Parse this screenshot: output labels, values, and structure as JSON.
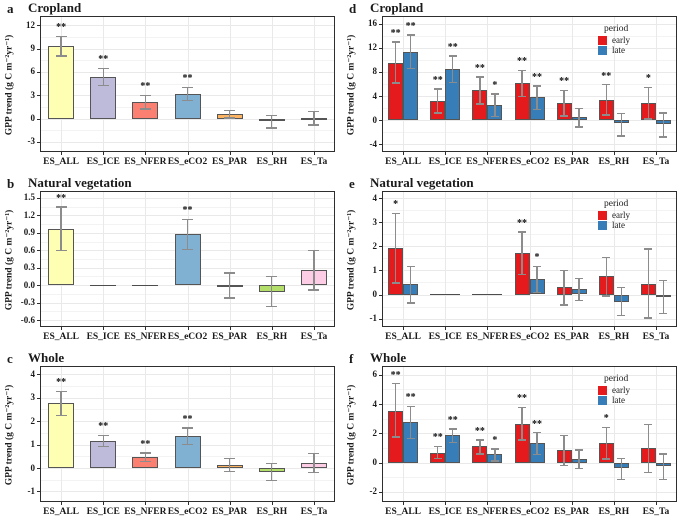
{
  "figure": {
    "ylabel": "GPP trend (g C m⁻²yr⁻¹)",
    "legend_title": "period",
    "legend_entries": [
      {
        "label": "early",
        "color": "#E41A1C"
      },
      {
        "label": "late",
        "color": "#377EB8"
      }
    ],
    "palette": {
      "ES_ALL": "#FFFFB3",
      "ES_ICE": "#BEBADA",
      "ES_NFER": "#FB8072",
      "ES_eCO2": "#80B1D3",
      "ES_PAR": "#FDB462",
      "ES_RH": "#B3DE69",
      "ES_Ta": "#FCCDE5"
    }
  },
  "chart_data": [
    {
      "type": "bar",
      "letter": "a",
      "title": "Cropland",
      "legend": false,
      "ylabel": "GPP trend (g C m⁻²yr⁻¹)",
      "categories": [
        "ES_ALL",
        "ES_ICE",
        "ES_NFER",
        "ES_eCO2",
        "ES_PAR",
        "ES_RH",
        "ES_Ta"
      ],
      "ylim": [
        -4.3,
        13.2
      ],
      "yticks": [
        "12",
        "9",
        "6",
        "3",
        "0",
        "-3"
      ],
      "series": [
        {
          "name": "trend",
          "colors": [
            "#FFFFB3",
            "#BEBADA",
            "#FB8072",
            "#80B1D3",
            "#FDB462",
            "#B3DE69",
            "#FCCDE5"
          ],
          "values": [
            9.3,
            5.4,
            2.15,
            3.2,
            0.55,
            -0.35,
            0.05
          ],
          "err_low": [
            8.1,
            4.3,
            1.25,
            2.35,
            0.1,
            -1.2,
            -0.8
          ],
          "err_high": [
            10.6,
            6.45,
            3.0,
            4.05,
            1.1,
            0.45,
            0.9
          ],
          "sig": [
            "**",
            "**",
            "**",
            "**",
            "",
            "",
            ""
          ]
        }
      ]
    },
    {
      "type": "bar",
      "letter": "b",
      "title": "Natural vegetation",
      "legend": false,
      "ylabel": "GPP trend (g C m⁻²yr⁻¹)",
      "categories": [
        "ES_ALL",
        "ES_ICE",
        "ES_NFER",
        "ES_eCO2",
        "ES_PAR",
        "ES_RH",
        "ES_Ta"
      ],
      "ylim": [
        -0.72,
        1.62
      ],
      "yticks": [
        "1.5",
        "1.2",
        "0.9",
        "0.6",
        "0.3",
        "0.0",
        "-0.3",
        "-0.6"
      ],
      "series": [
        {
          "name": "trend",
          "colors": [
            "#FFFFB3",
            "#BEBADA",
            "#FB8072",
            "#80B1D3",
            "#FDB462",
            "#B3DE69",
            "#FCCDE5"
          ],
          "values": [
            0.97,
            0,
            0,
            0.88,
            -0.01,
            -0.12,
            0.26
          ],
          "err_low": [
            0.6,
            null,
            null,
            0.62,
            -0.22,
            -0.36,
            -0.08
          ],
          "err_high": [
            1.35,
            null,
            null,
            1.13,
            0.21,
            0.15,
            0.6
          ],
          "sig": [
            "**",
            "",
            "",
            "**",
            "",
            "",
            ""
          ]
        }
      ]
    },
    {
      "type": "bar",
      "letter": "c",
      "title": "Whole",
      "legend": false,
      "ylabel": "GPP trend (g C m⁻²yr⁻¹)",
      "categories": [
        "ES_ALL",
        "ES_ICE",
        "ES_NFER",
        "ES_eCO2",
        "ES_PAR",
        "ES_RH",
        "ES_Ta"
      ],
      "ylim": [
        -1.45,
        4.35
      ],
      "yticks": [
        "4",
        "3",
        "2",
        "1",
        "0",
        "-1"
      ],
      "series": [
        {
          "name": "trend",
          "colors": [
            "#FFFFB3",
            "#BEBADA",
            "#FB8072",
            "#80B1D3",
            "#FDB462",
            "#B3DE69",
            "#FCCDE5"
          ],
          "values": [
            2.78,
            1.15,
            0.46,
            1.37,
            0.12,
            -0.15,
            0.22
          ],
          "err_low": [
            2.25,
            0.92,
            0.28,
            1.02,
            -0.15,
            -0.52,
            -0.18
          ],
          "err_high": [
            3.28,
            1.4,
            0.64,
            1.72,
            0.42,
            0.2,
            0.62
          ],
          "sig": [
            "**",
            "**",
            "**",
            "**",
            "",
            "",
            ""
          ]
        }
      ]
    },
    {
      "type": "bar",
      "letter": "d",
      "title": "Cropland",
      "legend": true,
      "ylabel": "GPP trend (g C m⁻²yr⁻¹)",
      "categories": [
        "ES_ALL",
        "ES_ICE",
        "ES_NFER",
        "ES_eCO2",
        "ES_PAR",
        "ES_RH",
        "ES_Ta"
      ],
      "ylim": [
        -5.3,
        17.3
      ],
      "yticks": [
        "16",
        "12",
        "8",
        "4",
        "0",
        "-4"
      ],
      "series": [
        {
          "name": "early",
          "color": "#E41A1C",
          "values": [
            9.5,
            3.2,
            5.0,
            6.2,
            2.9,
            3.4,
            2.9
          ],
          "err_low": [
            6.2,
            1.2,
            2.7,
            4.0,
            0.7,
            0.9,
            0.2
          ],
          "err_high": [
            13.0,
            5.2,
            7.2,
            8.3,
            5.0,
            5.9,
            5.5
          ],
          "sig": [
            "**",
            "**",
            "**",
            "**",
            "**",
            "**",
            "*"
          ]
        },
        {
          "name": "late",
          "color": "#377EB8",
          "values": [
            11.4,
            8.5,
            2.5,
            3.8,
            0.5,
            -0.5,
            -0.6
          ],
          "err_low": [
            8.6,
            6.3,
            0.6,
            1.8,
            -1.1,
            -2.6,
            -2.8
          ],
          "err_high": [
            14.2,
            10.7,
            4.4,
            5.7,
            2.0,
            1.1,
            1.2
          ],
          "sig": [
            "**",
            "**",
            "*",
            "**",
            "",
            "",
            ""
          ]
        }
      ]
    },
    {
      "type": "bar",
      "letter": "e",
      "title": "Natural vegetation",
      "legend": true,
      "ylabel": "GPP trend (g C m⁻²yr⁻¹)",
      "categories": [
        "ES_ALL",
        "ES_ICE",
        "ES_NFER",
        "ES_eCO2",
        "ES_PAR",
        "ES_RH",
        "ES_Ta"
      ],
      "ylim": [
        -1.35,
        4.3
      ],
      "yticks": [
        "4",
        "3",
        "2",
        "1",
        "0",
        "-1"
      ],
      "series": [
        {
          "name": "early",
          "color": "#E41A1C",
          "values": [
            1.93,
            0,
            0,
            1.73,
            0.3,
            0.77,
            0.45
          ],
          "err_low": [
            0.48,
            null,
            null,
            0.85,
            -0.42,
            -0.05,
            -0.97
          ],
          "err_high": [
            3.37,
            null,
            null,
            2.6,
            1.0,
            1.55,
            1.9
          ],
          "sig": [
            "*",
            "",
            "",
            "**",
            "",
            "",
            ""
          ]
        },
        {
          "name": "late",
          "color": "#377EB8",
          "values": [
            0.42,
            0,
            0,
            0.65,
            0.22,
            -0.33,
            -0.1
          ],
          "err_low": [
            -0.35,
            null,
            null,
            0.08,
            -0.25,
            -0.87,
            -0.77
          ],
          "err_high": [
            1.18,
            null,
            null,
            1.18,
            0.67,
            0.3,
            0.58
          ],
          "sig": [
            "",
            "",
            "",
            "*",
            "",
            "",
            ""
          ]
        }
      ]
    },
    {
      "type": "bar",
      "letter": "f",
      "title": "Whole",
      "legend": true,
      "ylabel": "GPP trend (g C m⁻²yr⁻¹)",
      "categories": [
        "ES_ALL",
        "ES_ICE",
        "ES_NFER",
        "ES_eCO2",
        "ES_PAR",
        "ES_RH",
        "ES_Ta"
      ],
      "ylim": [
        -2.7,
        6.6
      ],
      "yticks": [
        "6",
        "4",
        "2",
        "0",
        "-2"
      ],
      "series": [
        {
          "name": "early",
          "color": "#E41A1C",
          "values": [
            3.55,
            0.68,
            1.1,
            2.65,
            0.85,
            1.35,
            0.97
          ],
          "err_low": [
            1.75,
            0.28,
            0.6,
            1.55,
            -0.17,
            0.25,
            -0.65
          ],
          "err_high": [
            5.4,
            1.1,
            1.55,
            3.78,
            1.88,
            2.4,
            2.6
          ],
          "sig": [
            "**",
            "**",
            "**",
            "**",
            "",
            "*",
            ""
          ]
        },
        {
          "name": "late",
          "color": "#377EB8",
          "values": [
            2.78,
            1.85,
            0.55,
            1.33,
            0.27,
            -0.4,
            -0.25
          ],
          "err_low": [
            1.65,
            1.38,
            0.12,
            0.58,
            -0.38,
            -1.15,
            -1.15
          ],
          "err_high": [
            3.85,
            2.3,
            0.95,
            2.05,
            0.87,
            0.3,
            0.6
          ],
          "sig": [
            "**",
            "**",
            "*",
            "**",
            "",
            "",
            ""
          ]
        }
      ]
    }
  ]
}
